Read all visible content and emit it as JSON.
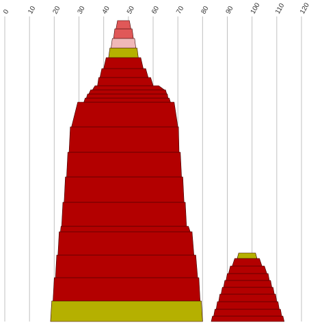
{
  "chart_data": {
    "type": "area",
    "title": "",
    "xlabel": "",
    "ylabel": "",
    "xlim": [
      0,
      120
    ],
    "x_ticks": [
      "0",
      "10",
      "20",
      "30",
      "40",
      "50",
      "60",
      "70",
      "80",
      "90",
      "100",
      "110",
      "120"
    ],
    "grid": true,
    "legend": "none",
    "colors": {
      "dark_red": "#b30000",
      "olive": "#b5b000",
      "light_olive": "#cccc55",
      "salmon": "#e05858",
      "pink": "#f0b8b8"
    },
    "stacks": [
      {
        "layers": [
          {
            "color": "#b5b000",
            "left": 18.5,
            "right": 80.0,
            "height": 30
          },
          {
            "color": "#b30000",
            "left": 19.5,
            "right": 79.0,
            "height": 34
          },
          {
            "color": "#b30000",
            "left": 20.5,
            "right": 78.0,
            "height": 33
          },
          {
            "color": "#b30000",
            "left": 21.5,
            "right": 76.5,
            "height": 34
          },
          {
            "color": "#b30000",
            "left": 22.5,
            "right": 75.0,
            "height": 8
          },
          {
            "color": "#b30000",
            "left": 23.0,
            "right": 73.5,
            "height": 35
          },
          {
            "color": "#b30000",
            "left": 24.0,
            "right": 72.5,
            "height": 37
          },
          {
            "color": "#b30000",
            "left": 25.0,
            "right": 71.5,
            "height": 36
          },
          {
            "color": "#b30000",
            "left": 26.0,
            "right": 70.5,
            "height": 37
          },
          {
            "color": "#b30000",
            "left": 27.0,
            "right": 70.0,
            "height": 36
          },
          {
            "color": "#b30000",
            "left": 32.0,
            "right": 67.0,
            "height": 6
          },
          {
            "color": "#b30000",
            "left": 33.0,
            "right": 66.0,
            "height": 6
          },
          {
            "color": "#b30000",
            "left": 34.0,
            "right": 65.5,
            "height": 6
          },
          {
            "color": "#b30000",
            "left": 35.5,
            "right": 64.5,
            "height": 6
          },
          {
            "color": "#b30000",
            "left": 37.5,
            "right": 60.0,
            "height": 12
          },
          {
            "color": "#b30000",
            "left": 38.5,
            "right": 58.0,
            "height": 13
          },
          {
            "color": "#b30000",
            "left": 40.0,
            "right": 56.0,
            "height": 16
          },
          {
            "color": "#b5b000",
            "left": 42.0,
            "right": 54.0,
            "height": 14
          },
          {
            "color": "#f0b8b8",
            "left": 43.0,
            "right": 53.0,
            "height": 14
          },
          {
            "color": "#e05858",
            "left": 44.0,
            "right": 52.0,
            "height": 14
          },
          {
            "color": "#e05858",
            "left": 45.0,
            "right": 51.0,
            "height": 12
          }
        ]
      },
      {
        "layers": [
          {
            "color": "#b30000",
            "left": 83.5,
            "right": 113.0,
            "height": 8
          },
          {
            "color": "#b30000",
            "left": 84.5,
            "right": 112.0,
            "height": 10
          },
          {
            "color": "#b30000",
            "left": 85.5,
            "right": 111.0,
            "height": 11
          },
          {
            "color": "#b30000",
            "left": 86.5,
            "right": 110.0,
            "height": 11
          },
          {
            "color": "#b30000",
            "left": 87.5,
            "right": 109.0,
            "height": 10
          },
          {
            "color": "#b30000",
            "left": 88.5,
            "right": 108.0,
            "height": 10
          },
          {
            "color": "#b30000",
            "left": 89.5,
            "right": 107.0,
            "height": 10
          },
          {
            "color": "#b30000",
            "left": 90.5,
            "right": 106.0,
            "height": 11
          },
          {
            "color": "#b30000",
            "left": 92.0,
            "right": 104.0,
            "height": 11
          },
          {
            "color": "#b5b000",
            "left": 94.0,
            "right": 102.0,
            "height": 8
          }
        ]
      }
    ]
  }
}
